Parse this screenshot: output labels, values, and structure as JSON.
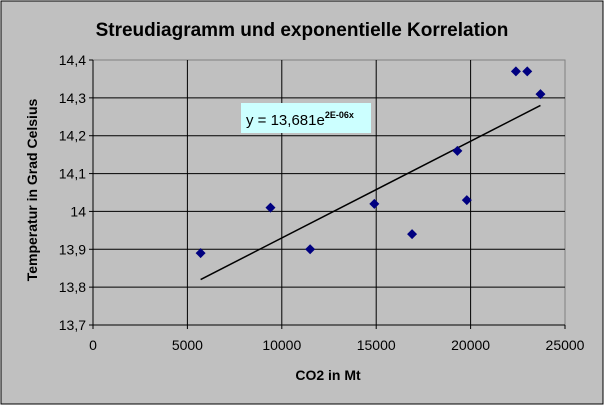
{
  "chart_data": {
    "type": "scatter",
    "title": "Streudiagramm und exponentielle Korrelation",
    "xlabel": "CO2 in Mt",
    "ylabel": "Temperatur in Grad Celsius",
    "xlim": [
      0,
      25000
    ],
    "ylim": [
      13.7,
      14.4
    ],
    "x_ticks": [
      0,
      5000,
      10000,
      15000,
      20000,
      25000
    ],
    "x_tick_labels": [
      "0",
      "5000",
      "10000",
      "15000",
      "20000",
      "25000"
    ],
    "y_ticks": [
      13.7,
      13.8,
      13.9,
      14.0,
      14.1,
      14.2,
      14.3,
      14.4
    ],
    "y_tick_labels": [
      "13,7",
      "13,8",
      "13,9",
      "14",
      "14,1",
      "14,2",
      "14,3",
      "14,4"
    ],
    "grid": true,
    "series": [
      {
        "marker": "diamond",
        "color": "#000080",
        "points": [
          {
            "x": 5700,
            "y": 13.89
          },
          {
            "x": 9400,
            "y": 14.01
          },
          {
            "x": 11500,
            "y": 13.9
          },
          {
            "x": 14900,
            "y": 14.02
          },
          {
            "x": 16900,
            "y": 13.94
          },
          {
            "x": 19300,
            "y": 14.16
          },
          {
            "x": 19800,
            "y": 14.03
          },
          {
            "x": 22400,
            "y": 14.37
          },
          {
            "x": 23000,
            "y": 14.37
          },
          {
            "x": 23700,
            "y": 14.31
          }
        ]
      }
    ],
    "trendline": {
      "type": "exponential",
      "equation_main": "y = 13,681e",
      "equation_exponent": "2E-06x",
      "x_range": [
        5700,
        23700
      ],
      "y_range": [
        13.82,
        14.28
      ],
      "color": "#000000"
    },
    "colors": {
      "outer_background": "#c0c0c0",
      "plot_background": "#c0c0c0",
      "equation_box": "#ccffff",
      "grid": "#000000",
      "marker": "#000080"
    }
  }
}
